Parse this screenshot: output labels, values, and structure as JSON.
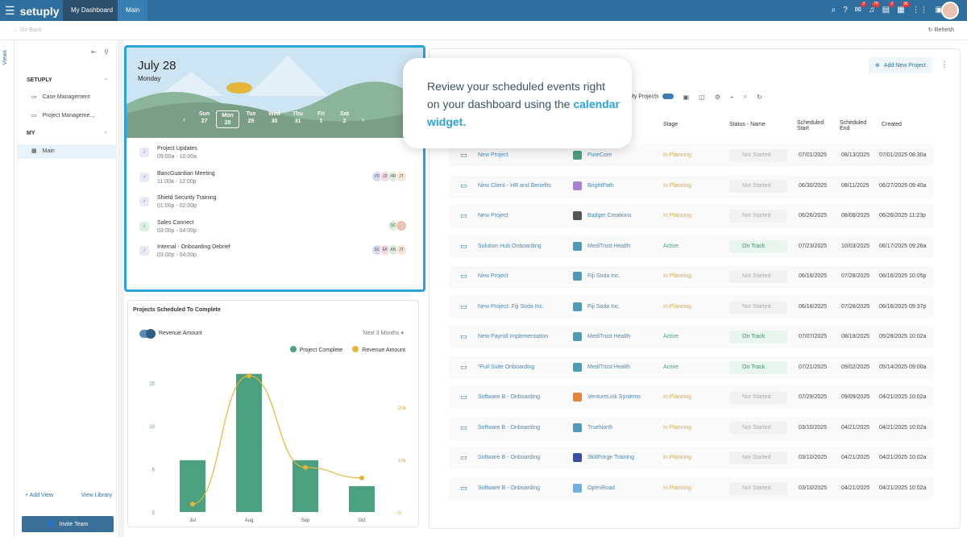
{
  "topbar": {
    "brand": "setuply",
    "tabs": [
      "My Dashboard",
      "Main"
    ],
    "badges": {
      "notif": "2",
      "alerts": "78",
      "tasks": "2",
      "calendar": "36"
    }
  },
  "subbar": {
    "back": "Go Back",
    "refresh": "Refresh"
  },
  "views_label": "Views",
  "sidebar": {
    "setuply_label": "SETUPLY",
    "items": [
      "Case Management",
      "Project Manageme..."
    ],
    "my_label": "MY",
    "my_items": [
      "Main"
    ],
    "add_view": "Add View",
    "view_library": "View Library",
    "invite": "Invite Team"
  },
  "calendar": {
    "date": "July 28",
    "weekday": "Monday",
    "week": [
      {
        "d": "Sun",
        "n": "27"
      },
      {
        "d": "Mon",
        "n": "28"
      },
      {
        "d": "Tue",
        "n": "29"
      },
      {
        "d": "Wed",
        "n": "30"
      },
      {
        "d": "Thu",
        "n": "31"
      },
      {
        "d": "Fri",
        "n": "1"
      },
      {
        "d": "Sat",
        "n": "2"
      }
    ],
    "events": [
      {
        "title": "Project Updates",
        "time": "09:00a - 10:00a",
        "avatars": []
      },
      {
        "title": "BancGuardian Meeting",
        "time": "11:00a - 12:00p",
        "avatars": [
          "VC",
          "JD",
          "HR",
          "JT"
        ]
      },
      {
        "title": "Shield Security Training",
        "time": "01:00p - 02:00p",
        "avatars": []
      },
      {
        "title": "Sales Connect",
        "time": "03:00p - 04:00p",
        "avatars": [
          "SC",
          ""
        ]
      },
      {
        "title": "Internal - Onboarding Debrief",
        "time": "03:00p - 04:00p",
        "avatars": [
          "SC",
          "EK",
          "AN",
          "JT"
        ]
      }
    ]
  },
  "projects_chart": {
    "title": "Projects Scheduled To Complete",
    "toggle_label": "Revenue Amount",
    "range": "Next 3 Months",
    "legend": [
      "Project Complete",
      "Revenue Amount"
    ]
  },
  "chart_data": {
    "type": "bar",
    "categories": [
      "Jul",
      "Aug",
      "Sep",
      "Oct"
    ],
    "series": [
      {
        "name": "Project Complete",
        "values": [
          6,
          16,
          6,
          3
        ]
      },
      {
        "name": "Revenue Amount",
        "values": [
          1500,
          26000,
          8500,
          6500
        ]
      }
    ],
    "ylim": [
      0,
      17
    ],
    "y_ticks": [
      "0",
      "5",
      "10",
      "15"
    ],
    "y2lim": [
      0,
      28000
    ],
    "y2_ticks": [
      "0",
      "10k",
      "20k"
    ],
    "colors": {
      "bars": "#4aa07f",
      "line": "#e5b43b"
    }
  },
  "table": {
    "add_label": "Add New Project",
    "toolbar_label": "My Projects",
    "headers": {
      "stage": "Stage",
      "status": "Status - Name",
      "start": "Scheduled Start",
      "end": "Scheduled End",
      "created": "Created"
    },
    "rows": [
      {
        "name": "New Project",
        "client": "PureCore",
        "stage": "In Planning",
        "status": "Not Started",
        "start": "07/01/2025",
        "end": "08/13/2025",
        "created": "07/01/2025 08:30a",
        "icolor": "#4aa07f"
      },
      {
        "name": "New Client - HR and Benefits",
        "client": "BrightPath",
        "stage": "In Planning",
        "status": "Not Started",
        "start": "06/30/2025",
        "end": "08/11/2025",
        "created": "06/27/2025 09:40a",
        "icolor": "#a97fd9"
      },
      {
        "name": "New Project",
        "client": "Badger Creations",
        "stage": "In Planning",
        "status": "Not Started",
        "start": "06/26/2025",
        "end": "08/08/2025",
        "created": "06/26/2025 11:23p",
        "icolor": "#555"
      },
      {
        "name": "Solution Hub Onboarding",
        "client": "MediTrust Health",
        "stage": "Active",
        "status": "On Track",
        "start": "07/23/2025",
        "end": "10/03/2025",
        "created": "06/17/2025 09:26a",
        "icolor": "#4c9bb7"
      },
      {
        "name": "New Project",
        "client": "Fiji Soda Inc.",
        "stage": "In Planning",
        "status": "Not Started",
        "start": "06/16/2025",
        "end": "07/28/2025",
        "created": "06/16/2025 10:05p",
        "icolor": "#4c9bb7"
      },
      {
        "name": "New Project: Fiji Soda Inc.",
        "client": "Fiji Soda Inc.",
        "stage": "In Planning",
        "status": "Not Started",
        "start": "06/16/2025",
        "end": "07/28/2025",
        "created": "06/16/2025 09:37p",
        "icolor": "#4c9bb7"
      },
      {
        "name": "New Payroll Implementation",
        "client": "MediTrust Health",
        "stage": "Active",
        "status": "On Track",
        "start": "07/07/2025",
        "end": "08/19/2025",
        "created": "05/28/2025 10:02a",
        "icolor": "#4c9bb7"
      },
      {
        "name": "*Full Suite Onboarding",
        "client": "MediTrust Health",
        "stage": "Active",
        "status": "On Track",
        "start": "07/21/2025",
        "end": "09/02/2025",
        "created": "05/14/2025 09:00a",
        "icolor": "#4c9bb7"
      },
      {
        "name": "Software B - Onboarding",
        "client": "VentureLink Systems",
        "stage": "In Planning",
        "status": "Not Started",
        "start": "07/29/2025",
        "end": "09/09/2025",
        "created": "04/21/2025 10:02a",
        "icolor": "#e8843a"
      },
      {
        "name": "Software B - Onboarding",
        "client": "TrueNorth",
        "stage": "In Planning",
        "status": "Not Started",
        "start": "03/10/2025",
        "end": "04/21/2025",
        "created": "04/21/2025 10:02a",
        "icolor": "#4c9bb7"
      },
      {
        "name": "Software B - Onboarding",
        "client": "SkillForge Training",
        "stage": "In Planning",
        "status": "Not Started",
        "start": "03/10/2025",
        "end": "04/21/2025",
        "created": "04/21/2025 10:02a",
        "icolor": "#3a4fa8"
      },
      {
        "name": "Software B - Onboarding",
        "client": "OpenRoad",
        "stage": "In Planning",
        "status": "Not Started",
        "start": "03/10/2025",
        "end": "04/21/2025",
        "created": "04/21/2025 10:02a",
        "icolor": "#6fb0e0"
      }
    ]
  },
  "overlay": {
    "text_pre": "Review your scheduled events right on your dashboard using the ",
    "text_highlight": "calendar widget."
  },
  "colors": {
    "brand": "#2f6fa0",
    "accent": "#29a3d9",
    "planning": "#e0a93a",
    "active": "#4aa07f"
  }
}
